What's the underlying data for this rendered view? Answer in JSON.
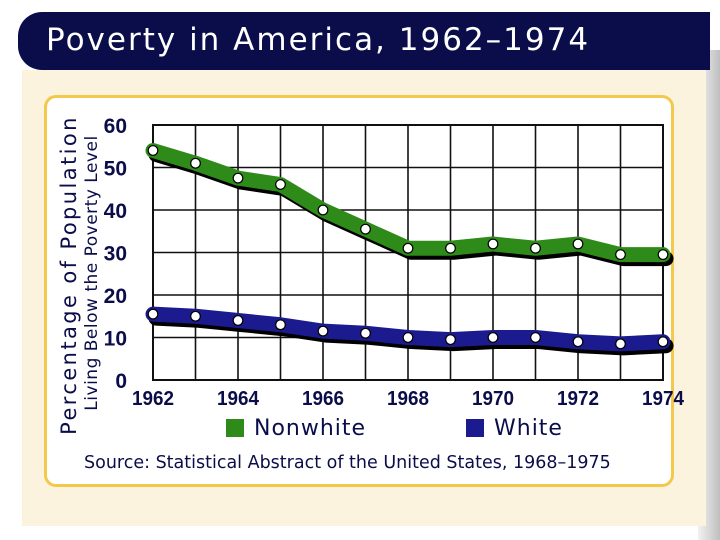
{
  "header": {
    "title": "Poverty in America, 1962–1974"
  },
  "legend": [
    {
      "label": "Nonwhite",
      "color": "#2e8b1a"
    },
    {
      "label": "White",
      "color": "#1b1b8f"
    }
  ],
  "source": "Source: Statistical Abstract of the United States, 1968–1975",
  "chart_data": {
    "type": "line",
    "title": "Poverty in America, 1962–1974",
    "ylabel_line1": "Percentage of Population",
    "ylabel_line2": "Living Below the Poverty Level",
    "xlabel": "",
    "x": [
      1962,
      1963,
      1964,
      1965,
      1966,
      1967,
      1968,
      1969,
      1970,
      1971,
      1972,
      1973,
      1974
    ],
    "x_tick_labels": [
      "1962",
      "1964",
      "1966",
      "1968",
      "1970",
      "1972",
      "1974"
    ],
    "x_tick_values": [
      1962,
      1964,
      1966,
      1968,
      1970,
      1972,
      1974
    ],
    "y_tick_labels": [
      "0",
      "10",
      "20",
      "30",
      "40",
      "50",
      "60"
    ],
    "y_tick_values": [
      0,
      10,
      20,
      30,
      40,
      50,
      60
    ],
    "ylim": [
      0,
      60
    ],
    "xlim": [
      1962,
      1974
    ],
    "grid": true,
    "legend_position": "bottom",
    "series": [
      {
        "name": "Nonwhite",
        "color": "#2e8b1a",
        "values": [
          54,
          51,
          47.5,
          46,
          40,
          35.5,
          31,
          31,
          32,
          31,
          32,
          29.5,
          29.5
        ]
      },
      {
        "name": "White",
        "color": "#1b1b8f",
        "values": [
          15.5,
          15,
          14,
          13,
          11.5,
          11,
          10,
          9.5,
          10,
          10,
          9,
          8.5,
          9
        ]
      }
    ]
  }
}
